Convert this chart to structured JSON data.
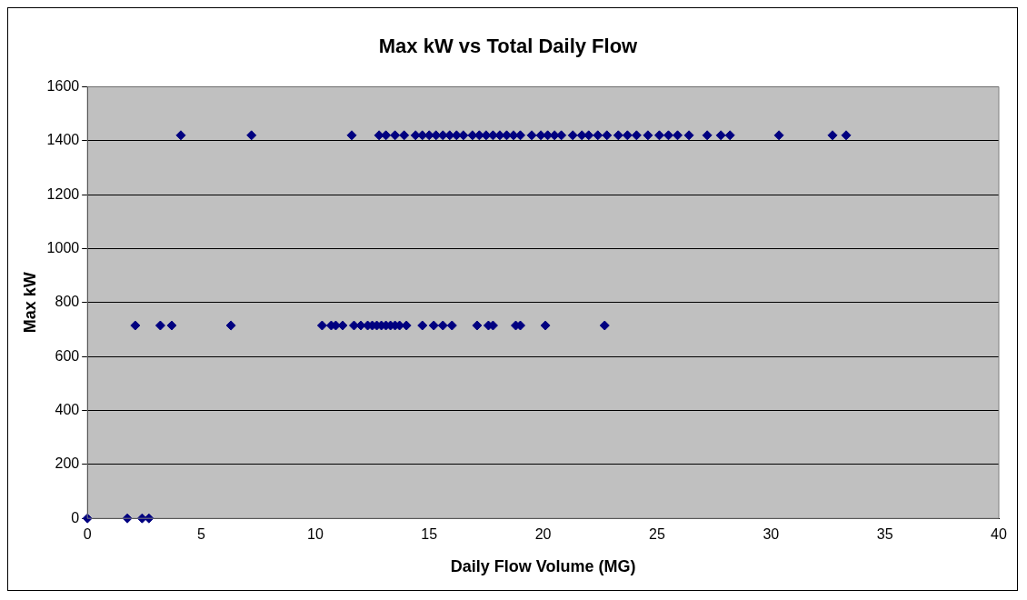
{
  "chart_data": {
    "type": "scatter",
    "title": "Max kW vs Total Daily Flow",
    "xlabel": "Daily Flow Volume (MG)",
    "ylabel": "Max kW",
    "series": [
      {
        "color": "#000080",
        "x": [
          0,
          1.75,
          2.4,
          2.7
        ],
        "values": [
          0,
          0,
          0,
          0
        ]
      },
      {
        "color": "#000080",
        "x": [
          2.1,
          3.2,
          3.7,
          6.3,
          10.3,
          10.7,
          10.9,
          11.2,
          11.7,
          12.0,
          12.3,
          12.5,
          12.7,
          12.9,
          13.1,
          13.3,
          13.5,
          13.7,
          14.0,
          14.7,
          15.2,
          15.6,
          16.0,
          17.1,
          17.6,
          17.8,
          18.8,
          19.0,
          20.1,
          22.7
        ],
        "values": [
          715,
          715,
          715,
          715,
          715,
          715,
          715,
          715,
          715,
          715,
          715,
          715,
          715,
          715,
          715,
          715,
          715,
          715,
          715,
          715,
          715,
          715,
          715,
          715,
          715,
          715,
          715,
          715,
          715,
          715
        ]
      },
      {
        "color": "#000080",
        "x": [
          4.1,
          7.2,
          11.6,
          12.8,
          13.1,
          13.5,
          13.9,
          14.4,
          14.7,
          15.0,
          15.3,
          15.6,
          15.9,
          16.2,
          16.5,
          16.9,
          17.2,
          17.5,
          17.8,
          18.1,
          18.4,
          18.7,
          19.0,
          19.5,
          19.9,
          20.2,
          20.5,
          20.8,
          21.3,
          21.7,
          22.0,
          22.4,
          22.8,
          23.3,
          23.7,
          24.1,
          24.6,
          25.1,
          25.5,
          25.9,
          26.4,
          27.2,
          27.8,
          28.2,
          30.35,
          32.7,
          33.3
        ],
        "values": [
          1420,
          1420,
          1420,
          1420,
          1420,
          1420,
          1420,
          1420,
          1420,
          1420,
          1420,
          1420,
          1420,
          1420,
          1420,
          1420,
          1420,
          1420,
          1420,
          1420,
          1420,
          1420,
          1420,
          1420,
          1420,
          1420,
          1420,
          1420,
          1420,
          1420,
          1420,
          1420,
          1420,
          1420,
          1420,
          1420,
          1420,
          1420,
          1420,
          1420,
          1420,
          1420,
          1420,
          1420,
          1420,
          1420,
          1420
        ]
      }
    ],
    "xlim": [
      0,
      40
    ],
    "xticks": [
      0,
      5,
      10,
      15,
      20,
      25,
      30,
      35,
      40
    ],
    "ylim": [
      0,
      1600
    ],
    "yticks": [
      0,
      200,
      400,
      600,
      800,
      1000,
      1200,
      1400,
      1600
    ],
    "grid": "y",
    "legend": false,
    "marker": "diamond"
  }
}
